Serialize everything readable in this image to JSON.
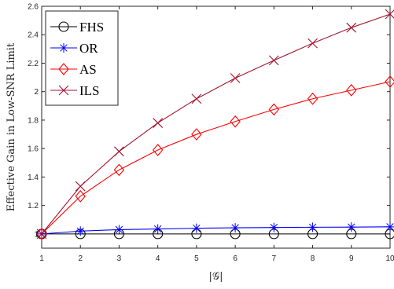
{
  "chart_data": {
    "type": "line",
    "x": [
      1,
      2,
      3,
      4,
      5,
      6,
      7,
      8,
      9,
      10
    ],
    "xlabel": "|𝒢|",
    "ylabel": "Effective Gain in Low-SNR Limit",
    "xlim": [
      1,
      10
    ],
    "ylim": [
      0.9,
      2.6
    ],
    "xticks": [
      "1",
      "2",
      "3",
      "4",
      "5",
      "6",
      "7",
      "8",
      "9",
      "10"
    ],
    "yticks": [
      "1",
      "1.2",
      "1.4",
      "1.6",
      "1.8",
      "2",
      "2.2",
      "2.4",
      "2.6"
    ],
    "grid": false,
    "legend": "top-left",
    "series": [
      {
        "name": "FHS",
        "marker": "circle",
        "color": "#000000",
        "values": [
          1,
          1,
          1,
          1,
          1,
          1,
          1,
          1,
          1,
          1
        ]
      },
      {
        "name": "OR",
        "marker": "asterisk",
        "color": "#0000ff",
        "values": [
          1,
          1.02,
          1.03,
          1.035,
          1.04,
          1.043,
          1.045,
          1.047,
          1.048,
          1.05
        ]
      },
      {
        "name": "AS",
        "marker": "diamond",
        "color": "#ff0000",
        "values": [
          1,
          1.265,
          1.45,
          1.59,
          1.7,
          1.79,
          1.875,
          1.95,
          2.01,
          2.07
        ]
      },
      {
        "name": "ILS",
        "marker": "x",
        "color": "#a2142f",
        "values": [
          1,
          1.335,
          1.58,
          1.78,
          1.95,
          2.095,
          2.22,
          2.34,
          2.45,
          2.545
        ]
      }
    ]
  }
}
